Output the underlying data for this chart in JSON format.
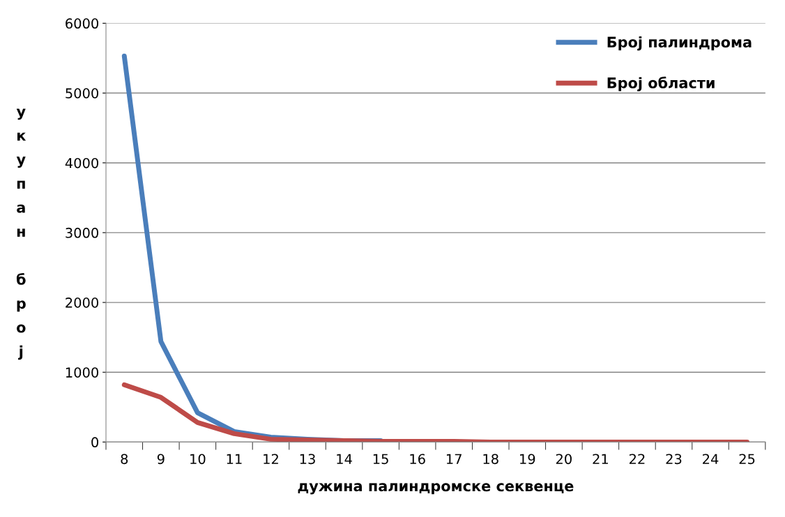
{
  "chart_data": {
    "type": "line",
    "xlabel": "дужина палиндромске секвенце",
    "ylabel": "укупан број",
    "categories": [
      "8",
      "9",
      "10",
      "11",
      "12",
      "13",
      "14",
      "15",
      "16",
      "17",
      "18",
      "19",
      "20",
      "21",
      "22",
      "23",
      "24",
      "25"
    ],
    "series": [
      {
        "name": "Број палиндрома",
        "color": "#4a7ebb",
        "values": [
          5530,
          1440,
          420,
          150,
          70,
          40,
          20,
          20,
          null,
          null,
          null,
          null,
          null,
          null,
          null,
          null,
          null,
          null
        ]
      },
      {
        "name": "Број области",
        "color": "#be4b48",
        "values": [
          820,
          640,
          280,
          120,
          40,
          30,
          20,
          10,
          10,
          10,
          0,
          0,
          0,
          0,
          0,
          0,
          0,
          0
        ]
      }
    ],
    "ylim": [
      0,
      6000
    ],
    "yticks": [
      0,
      1000,
      2000,
      3000,
      4000,
      5000,
      6000
    ],
    "grid": "y",
    "legend": "top right",
    "marker": "none",
    "line_style": "solid"
  }
}
